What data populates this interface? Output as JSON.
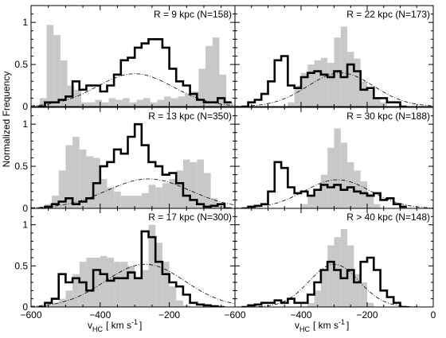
{
  "chart_data": {
    "type": "bar",
    "ylabel": "Normalized Frequency",
    "xlabel": {
      "main": "v",
      "sub": "HC",
      "unit": "[ km s",
      "sup": "-1",
      "close": "]"
    },
    "ylim": [
      0,
      1.2
    ],
    "y_ticks": [
      "0",
      "0.5",
      "1"
    ],
    "x_ticks_left": [
      -600,
      -400,
      -200
    ],
    "x_ticks_right": [
      -600,
      -400,
      -200,
      0
    ],
    "x_tick_labels_left": [
      "−600",
      "−400",
      "−200"
    ],
    "x_tick_labels_right": [
      "−600",
      "−400",
      "−200",
      "0"
    ],
    "series": [
      {
        "name": "observed histogram",
        "color": "#000000",
        "style": "thick step"
      },
      {
        "name": "model histogram",
        "color": "#c8c8c8",
        "style": "filled step"
      },
      {
        "name": "gaussian fit",
        "color": "#000000",
        "style": "dash-dot"
      }
    ],
    "panels": [
      {
        "id": "r9",
        "label": "R = 9 kpc (N=158)",
        "col": 0,
        "row": 0,
        "xlim": [
          -600,
          -10
        ],
        "gauss": {
          "mu": -300,
          "sigma": 110,
          "amp": 0.39
        },
        "gray_x": [
          -565,
          -545,
          -525,
          -505,
          -485,
          -465,
          -445,
          -425,
          -405,
          -385,
          -365,
          -345,
          -325,
          -305,
          -285,
          -265,
          -245,
          -225,
          -205,
          -185,
          -165,
          -145,
          -125,
          -105,
          -85,
          -65,
          -45,
          -25
        ],
        "gray_y": [
          0.1,
          0.97,
          0.85,
          0.55,
          0.25,
          0.2,
          0.05,
          0.05,
          0.08,
          0.05,
          0.1,
          0.08,
          0.1,
          0.05,
          0.08,
          0.1,
          0.05,
          0.08,
          0.12,
          0.1,
          0.12,
          0.15,
          0.18,
          0.45,
          0.72,
          0.82,
          0.38,
          0.05
        ],
        "black_x": [
          -570,
          -550,
          -530,
          -510,
          -490,
          -470,
          -450,
          -430,
          -410,
          -390,
          -370,
          -350,
          -330,
          -310,
          -290,
          -270,
          -250,
          -230,
          -210,
          -190,
          -170,
          -150,
          -130,
          -110,
          -90,
          -70,
          -50,
          -30
        ],
        "black_y": [
          0.0,
          0.05,
          0.05,
          0.08,
          0.12,
          0.3,
          0.2,
          0.25,
          0.25,
          0.18,
          0.25,
          0.38,
          0.55,
          0.58,
          0.7,
          0.75,
          0.8,
          0.8,
          0.7,
          0.45,
          0.3,
          0.25,
          0.15,
          0.08,
          0.05,
          0.05,
          0.1,
          0.05
        ]
      },
      {
        "id": "r22",
        "label": "R = 22 kpc (N=173)",
        "col": 1,
        "row": 0,
        "xlim": [
          -600,
          0
        ],
        "gauss": {
          "mu": -280,
          "sigma": 100,
          "amp": 0.4
        },
        "gray_x": [
          -430,
          -410,
          -390,
          -370,
          -350,
          -330,
          -310,
          -290,
          -270,
          -250,
          -230,
          -210,
          -190,
          -170,
          -150
        ],
        "gray_y": [
          0.05,
          0.25,
          0.4,
          0.5,
          0.55,
          0.58,
          0.52,
          0.82,
          0.95,
          0.65,
          0.57,
          0.3,
          0.2,
          0.1,
          0.05
        ],
        "black_x": [
          -570,
          -550,
          -530,
          -510,
          -490,
          -470,
          -450,
          -430,
          -410,
          -390,
          -370,
          -350,
          -330,
          -310,
          -290,
          -270,
          -250,
          -230,
          -210,
          -190,
          -170,
          -150,
          -130,
          -110,
          -90
        ],
        "black_y": [
          0.0,
          0.05,
          0.08,
          0.15,
          0.3,
          0.55,
          0.6,
          0.25,
          0.22,
          0.35,
          0.4,
          0.42,
          0.38,
          0.35,
          0.42,
          0.35,
          0.5,
          0.42,
          0.2,
          0.22,
          0.1,
          0.1,
          0.05,
          0.05,
          0.0
        ]
      },
      {
        "id": "r13",
        "label": "R = 13 kpc (N=350)",
        "col": 0,
        "row": 1,
        "xlim": [
          -600,
          -10
        ],
        "gauss": {
          "mu": -260,
          "sigma": 120,
          "amp": 0.35
        },
        "gray_x": [
          -550,
          -530,
          -510,
          -490,
          -470,
          -450,
          -430,
          -410,
          -390,
          -370,
          -350,
          -330,
          -310,
          -290,
          -270,
          -250,
          -230,
          -210,
          -190,
          -170,
          -150,
          -130,
          -110,
          -90,
          -70,
          -50
        ],
        "gray_y": [
          0.05,
          0.15,
          0.45,
          0.75,
          0.85,
          0.7,
          0.62,
          0.6,
          0.35,
          0.25,
          0.2,
          0.15,
          0.15,
          0.15,
          0.18,
          0.28,
          0.25,
          0.3,
          0.35,
          0.45,
          0.58,
          0.55,
          0.58,
          0.42,
          0.12,
          0.05
        ],
        "black_x": [
          -570,
          -550,
          -530,
          -510,
          -490,
          -470,
          -450,
          -430,
          -410,
          -390,
          -370,
          -350,
          -330,
          -310,
          -290,
          -270,
          -250,
          -230,
          -210,
          -190,
          -170,
          -150,
          -130,
          -110,
          -90,
          -70,
          -50,
          -30
        ],
        "black_y": [
          0.0,
          0.02,
          0.05,
          0.08,
          0.12,
          0.05,
          0.08,
          0.12,
          0.3,
          0.5,
          0.55,
          0.7,
          0.65,
          0.85,
          1.0,
          0.75,
          0.55,
          0.5,
          0.4,
          0.42,
          0.3,
          0.15,
          0.1,
          0.05,
          0.02,
          0.03,
          0.05,
          0.0
        ]
      },
      {
        "id": "r30",
        "label": "R = 30 kpc (N=188)",
        "col": 1,
        "row": 1,
        "xlim": [
          -600,
          0
        ],
        "gauss": {
          "mu": -290,
          "sigma": 100,
          "amp": 0.34
        },
        "gray_x": [
          -390,
          -370,
          -350,
          -330,
          -310,
          -290,
          -270,
          -250,
          -230,
          -210,
          -190,
          -170
        ],
        "gray_y": [
          0.05,
          0.15,
          0.22,
          0.4,
          0.72,
          0.95,
          0.78,
          0.55,
          0.45,
          0.32,
          0.18,
          0.05
        ],
        "black_x": [
          -570,
          -550,
          -530,
          -510,
          -490,
          -470,
          -450,
          -430,
          -410,
          -390,
          -370,
          -350,
          -330,
          -310,
          -290,
          -270,
          -250,
          -230,
          -210,
          -190,
          -170,
          -150,
          -130,
          -110,
          -90
        ],
        "black_y": [
          0.0,
          0.02,
          0.03,
          0.05,
          0.2,
          0.55,
          0.48,
          0.25,
          0.18,
          0.2,
          0.15,
          0.22,
          0.28,
          0.25,
          0.28,
          0.22,
          0.25,
          0.2,
          0.18,
          0.15,
          0.18,
          0.1,
          0.12,
          0.05,
          0.02
        ]
      },
      {
        "id": "r17",
        "label": "R = 17 kpc (N=300)",
        "col": 0,
        "row": 2,
        "xlim": [
          -600,
          -10
        ],
        "gauss": {
          "mu": -270,
          "sigma": 115,
          "amp": 0.52
        },
        "gray_x": [
          -550,
          -530,
          -510,
          -490,
          -470,
          -450,
          -430,
          -410,
          -390,
          -370,
          -350,
          -330,
          -310,
          -290,
          -270,
          -250,
          -230,
          -210,
          -190,
          -170,
          -150
        ],
        "gray_y": [
          0.02,
          0.05,
          0.1,
          0.2,
          0.4,
          0.55,
          0.6,
          0.6,
          0.62,
          0.6,
          0.55,
          0.55,
          0.5,
          0.35,
          0.45,
          1.0,
          0.78,
          0.55,
          0.25,
          0.08,
          0.02
        ],
        "black_x": [
          -570,
          -550,
          -530,
          -510,
          -490,
          -470,
          -450,
          -430,
          -410,
          -390,
          -370,
          -350,
          -330,
          -310,
          -290,
          -270,
          -250,
          -230,
          -210,
          -190,
          -170,
          -150,
          -130,
          -110,
          -90,
          -70,
          -50
        ],
        "black_y": [
          0.0,
          0.05,
          0.1,
          0.4,
          0.3,
          0.35,
          0.3,
          0.2,
          0.45,
          0.4,
          0.32,
          0.35,
          0.35,
          0.42,
          0.35,
          0.92,
          0.85,
          0.55,
          0.4,
          0.3,
          0.25,
          0.15,
          0.05,
          0.03,
          0.02,
          0.01,
          0.0
        ]
      },
      {
        "id": "r40",
        "label": "R > 40 kpc (N=148)",
        "col": 1,
        "row": 2,
        "xlim": [
          -600,
          0
        ],
        "gauss": {
          "mu": -300,
          "sigma": 75,
          "amp": 0.52
        },
        "gray_x": [
          -370,
          -350,
          -330,
          -310,
          -290,
          -270,
          -250,
          -230,
          -210,
          -190
        ],
        "gray_y": [
          0.05,
          0.2,
          0.45,
          0.75,
          0.85,
          0.95,
          0.75,
          0.4,
          0.3,
          0.05
        ],
        "black_x": [
          -570,
          -550,
          -530,
          -510,
          -490,
          -470,
          -450,
          -430,
          -410,
          -390,
          -370,
          -350,
          -330,
          -310,
          -290,
          -270,
          -250,
          -230,
          -210,
          -190,
          -170,
          -150,
          -130,
          -110,
          -90
        ],
        "black_y": [
          0.0,
          0.02,
          0.03,
          0.05,
          0.05,
          0.08,
          0.05,
          0.1,
          0.05,
          0.05,
          0.15,
          0.3,
          0.45,
          0.55,
          0.45,
          0.35,
          0.45,
          0.3,
          0.55,
          0.6,
          0.45,
          0.2,
          0.12,
          0.05,
          0.0
        ]
      }
    ]
  }
}
